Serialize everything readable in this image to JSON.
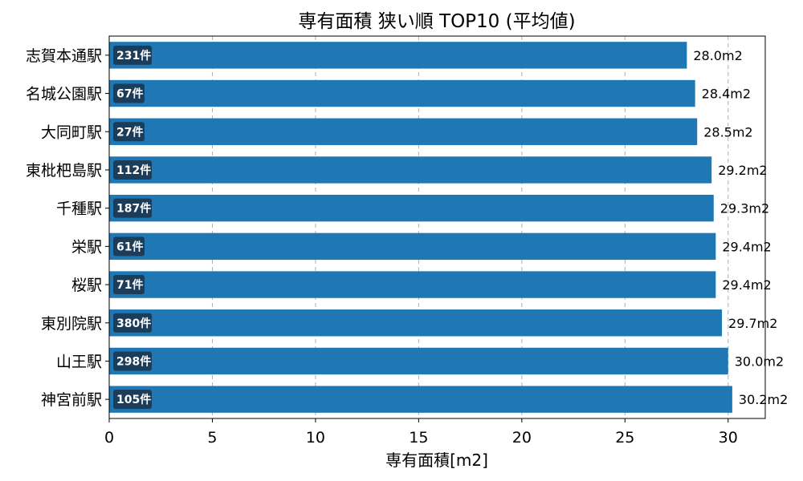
{
  "chart_data": {
    "type": "bar",
    "orientation": "horizontal",
    "title": "専有面積 狭い順 TOP10 (平均値)",
    "xlabel": "専有面積[m2]",
    "ylabel": "",
    "xlim": [
      0,
      31.8
    ],
    "xticks": [
      0,
      5,
      10,
      15,
      20,
      25,
      30
    ],
    "xtick_labels": [
      "0",
      "5",
      "10",
      "15",
      "20",
      "25",
      "30"
    ],
    "grid": "x-dashed",
    "bar_color": "#1f77b4",
    "count_box_color": "#1c3d5a",
    "categories": [
      "志賀本通駅",
      "名城公園駅",
      "大同町駅",
      "東枇杷島駅",
      "千種駅",
      "栄駅",
      "桜駅",
      "東別院駅",
      "山王駅",
      "神宮前駅"
    ],
    "values": [
      28.0,
      28.4,
      28.5,
      29.2,
      29.3,
      29.4,
      29.4,
      29.7,
      30.0,
      30.2
    ],
    "value_labels": [
      "28.0m2",
      "28.4m2",
      "28.5m2",
      "29.2m2",
      "29.3m2",
      "29.4m2",
      "29.4m2",
      "29.7m2",
      "30.0m2",
      "30.2m2"
    ],
    "counts": [
      "231件",
      "67件",
      "27件",
      "112件",
      "187件",
      "61件",
      "71件",
      "380件",
      "298件",
      "105件"
    ]
  }
}
